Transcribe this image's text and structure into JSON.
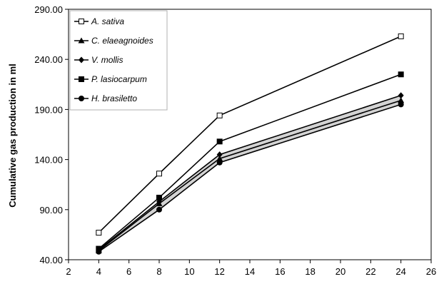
{
  "chart_data": {
    "type": "line",
    "title": "",
    "xlabel": "",
    "ylabel": "Cumulative gas production in ml",
    "xlim": [
      2,
      26
    ],
    "ylim": [
      40,
      290
    ],
    "xticks": [
      2,
      4,
      6,
      8,
      10,
      12,
      14,
      16,
      18,
      20,
      22,
      24,
      26
    ],
    "yticks": [
      40,
      90,
      140,
      190,
      240,
      290
    ],
    "ytick_labels": [
      "40.00",
      "90.00",
      "140.00",
      "190.00",
      "240.00",
      "290.00"
    ],
    "grid": false,
    "legend": "top-left",
    "x": [
      4,
      8,
      12,
      24
    ],
    "series": [
      {
        "name": "A. sativa",
        "marker": "open-square",
        "values": [
          67,
          126,
          184,
          263
        ]
      },
      {
        "name": "C. elaeagnoides",
        "marker": "triangle",
        "values": [
          49,
          96,
          141,
          199
        ]
      },
      {
        "name": "V. mollis",
        "marker": "diamond",
        "values": [
          50,
          98,
          145,
          204
        ]
      },
      {
        "name": "P. lasiocarpum",
        "marker": "filled-square",
        "values": [
          51,
          102,
          158,
          225
        ]
      },
      {
        "name": "H. brasiletto",
        "marker": "circle",
        "values": [
          48,
          90,
          137,
          195
        ]
      }
    ],
    "shaded_band": {
      "upper": "V. mollis",
      "lower": "H. brasiletto",
      "color": "#d3d3d3"
    }
  }
}
